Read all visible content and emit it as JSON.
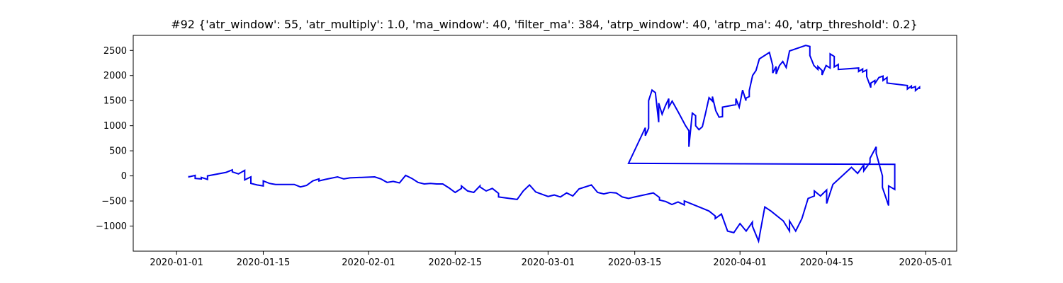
{
  "chart_data": {
    "type": "line",
    "title": "#92 {'atr_window': 55, 'atr_multiply': 1.0, 'ma_window': 40, 'filter_ma': 384, 'atrp_window': 40, 'atrp_ma': 40, 'atrp_threshold': 0.2}",
    "xlabel": "",
    "ylabel": "",
    "x_ticks": [
      "2020-01-01",
      "2020-01-15",
      "2020-02-01",
      "2020-02-15",
      "2020-03-01",
      "2020-03-15",
      "2020-04-01",
      "2020-04-15",
      "2020-05-01"
    ],
    "y_ticks": [
      -1000,
      -500,
      0,
      500,
      1000,
      1500,
      2000,
      2500
    ],
    "xlim": [
      "2019-12-25",
      "2020-05-06"
    ],
    "ylim": [
      -1500,
      2800
    ],
    "grid": false,
    "series": [
      {
        "color": "#0000ee",
        "points": [
          [
            "2020-01-03",
            0
          ],
          [
            "2020-01-03",
            -20
          ],
          [
            "2020-01-04",
            10
          ],
          [
            "2020-01-04",
            -50
          ],
          [
            "2020-01-05",
            -60
          ],
          [
            "2020-01-05",
            -30
          ],
          [
            "2020-01-06",
            -70
          ],
          [
            "2020-01-06",
            0
          ],
          [
            "2020-01-09",
            70
          ],
          [
            "2020-01-10",
            120
          ],
          [
            "2020-01-10",
            80
          ],
          [
            "2020-01-11",
            40
          ],
          [
            "2020-01-12",
            110
          ],
          [
            "2020-01-12",
            -80
          ],
          [
            "2020-01-13",
            -20
          ],
          [
            "2020-01-13",
            -150
          ],
          [
            "2020-01-14",
            -180
          ],
          [
            "2020-01-15",
            -200
          ],
          [
            "2020-01-15",
            -100
          ],
          [
            "2020-01-16",
            -150
          ],
          [
            "2020-01-17",
            -170
          ],
          [
            "2020-01-20",
            -170
          ],
          [
            "2020-01-21",
            -220
          ],
          [
            "2020-01-22",
            -190
          ],
          [
            "2020-01-23",
            -100
          ],
          [
            "2020-01-24",
            -60
          ],
          [
            "2020-01-24",
            -100
          ],
          [
            "2020-01-25",
            -70
          ],
          [
            "2020-01-27",
            -20
          ],
          [
            "2020-01-28",
            -60
          ],
          [
            "2020-01-29",
            -40
          ],
          [
            "2020-02-02",
            -20
          ],
          [
            "2020-02-03",
            -60
          ],
          [
            "2020-02-04",
            -130
          ],
          [
            "2020-02-05",
            -110
          ],
          [
            "2020-02-06",
            -140
          ],
          [
            "2020-02-07",
            10
          ],
          [
            "2020-02-08",
            -50
          ],
          [
            "2020-02-09",
            -130
          ],
          [
            "2020-02-10",
            -160
          ],
          [
            "2020-02-11",
            -150
          ],
          [
            "2020-02-12",
            -160
          ],
          [
            "2020-02-13",
            -160
          ],
          [
            "2020-02-14",
            -240
          ],
          [
            "2020-02-15",
            -330
          ],
          [
            "2020-02-16",
            -250
          ],
          [
            "2020-02-16",
            -200
          ],
          [
            "2020-02-17",
            -300
          ],
          [
            "2020-02-18",
            -330
          ],
          [
            "2020-02-19",
            -200
          ],
          [
            "2020-02-19",
            -220
          ],
          [
            "2020-02-20",
            -300
          ],
          [
            "2020-02-21",
            -250
          ],
          [
            "2020-02-22",
            -350
          ],
          [
            "2020-02-22",
            -420
          ],
          [
            "2020-02-25",
            -470
          ],
          [
            "2020-02-26",
            -300
          ],
          [
            "2020-02-27",
            -180
          ],
          [
            "2020-02-28",
            -320
          ],
          [
            "2020-03-01",
            -410
          ],
          [
            "2020-03-02",
            -380
          ],
          [
            "2020-03-03",
            -420
          ],
          [
            "2020-03-04",
            -340
          ],
          [
            "2020-03-05",
            -400
          ],
          [
            "2020-03-06",
            -260
          ],
          [
            "2020-03-08",
            -180
          ],
          [
            "2020-03-09",
            -330
          ],
          [
            "2020-03-10",
            -360
          ],
          [
            "2020-03-11",
            -330
          ],
          [
            "2020-03-12",
            -340
          ],
          [
            "2020-03-13",
            -420
          ],
          [
            "2020-03-14",
            -450
          ],
          [
            "2020-03-15",
            -420
          ],
          [
            "2020-03-18",
            -340
          ],
          [
            "2020-03-19",
            -430
          ],
          [
            "2020-03-19",
            -480
          ],
          [
            "2020-03-20",
            -510
          ],
          [
            "2020-03-21",
            -570
          ],
          [
            "2020-03-22",
            -520
          ],
          [
            "2020-03-23",
            -580
          ],
          [
            "2020-03-23",
            -500
          ],
          [
            "2020-03-24",
            -550
          ],
          [
            "2020-03-26",
            -650
          ],
          [
            "2020-03-27",
            -700
          ],
          [
            "2020-03-28",
            -800
          ],
          [
            "2020-03-28",
            -850
          ],
          [
            "2020-03-29",
            -760
          ],
          [
            "2020-03-30",
            -1100
          ],
          [
            "2020-03-31",
            -1130
          ],
          [
            "2020-04-01",
            -950
          ],
          [
            "2020-04-02",
            -1100
          ],
          [
            "2020-04-03",
            -920
          ],
          [
            "2020-04-03",
            -1000
          ],
          [
            "2020-04-04",
            -1300
          ],
          [
            "2020-04-05",
            -620
          ],
          [
            "2020-04-06",
            -700
          ],
          [
            "2020-04-08",
            -900
          ],
          [
            "2020-04-09",
            -1100
          ],
          [
            "2020-04-09",
            -900
          ],
          [
            "2020-04-10",
            -1100
          ],
          [
            "2020-04-11",
            -850
          ],
          [
            "2020-04-12",
            -450
          ],
          [
            "2020-04-13",
            -400
          ],
          [
            "2020-04-13",
            -300
          ],
          [
            "2020-04-14",
            -400
          ],
          [
            "2020-04-15",
            -280
          ],
          [
            "2020-04-15",
            -550
          ],
          [
            "2020-04-16",
            -170
          ],
          [
            "2020-04-19",
            170
          ],
          [
            "2020-04-20",
            50
          ],
          [
            "2020-04-21",
            220
          ],
          [
            "2020-04-21",
            100
          ],
          [
            "2020-04-22",
            270
          ],
          [
            "2020-04-22",
            350
          ],
          [
            "2020-04-23",
            580
          ],
          [
            "2020-04-23",
            450
          ],
          [
            "2020-04-24",
            0
          ],
          [
            "2020-04-24",
            -230
          ],
          [
            "2020-04-25",
            -590
          ],
          [
            "2020-04-25",
            -200
          ],
          [
            "2020-04-26",
            -270
          ],
          [
            "2020-04-26",
            230
          ],
          [
            "2020-03-18",
            960
          ]
        ]
      }
    ]
  }
}
